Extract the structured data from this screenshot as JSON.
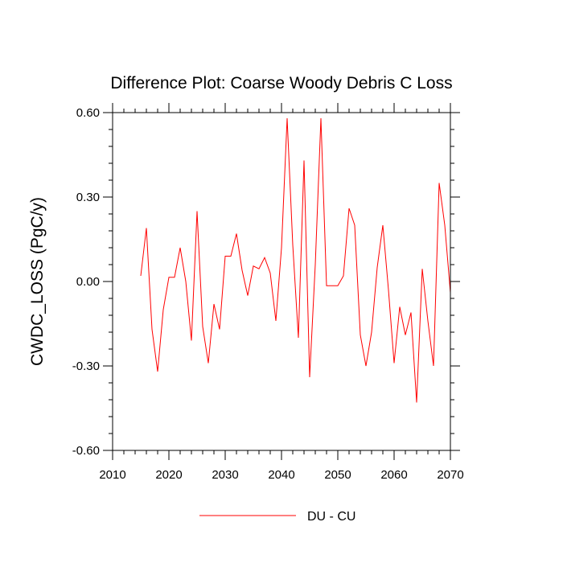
{
  "chart_data": {
    "type": "line",
    "title": "Difference Plot: Coarse Woody Debris C Loss",
    "xlabel": "",
    "ylabel": "CWDC_LOSS  (PgC/y)",
    "xlim": [
      2010,
      2070
    ],
    "ylim": [
      -0.6,
      0.6
    ],
    "xticks": [
      2010,
      2020,
      2030,
      2040,
      2050,
      2060,
      2070
    ],
    "xtick_labels": [
      "2010",
      "2020",
      "2030",
      "2040",
      "2050",
      "2060",
      "2070"
    ],
    "yticks": [
      -0.6,
      -0.3,
      0.0,
      0.3,
      0.6
    ],
    "ytick_labels": [
      "-0.60",
      "-0.30",
      "0.00",
      "0.30",
      "0.60"
    ],
    "grid": false,
    "legend": "bottom",
    "series": [
      {
        "name": "DU - CU",
        "color": "#ff0000",
        "x": [
          2015,
          2016,
          2017,
          2018,
          2019,
          2020,
          2021,
          2022,
          2023,
          2024,
          2025,
          2026,
          2027,
          2028,
          2029,
          2030,
          2031,
          2032,
          2033,
          2034,
          2035,
          2036,
          2037,
          2038,
          2039,
          2040,
          2041,
          2042,
          2043,
          2044,
          2045,
          2046,
          2047,
          2048,
          2049,
          2050,
          2051,
          2052,
          2053,
          2054,
          2055,
          2056,
          2057,
          2058,
          2059,
          2060,
          2061,
          2062,
          2063,
          2064,
          2065,
          2066,
          2067,
          2068,
          2069,
          2070
        ],
        "y": [
          0.02,
          0.19,
          -0.17,
          -0.32,
          -0.1,
          0.015,
          0.015,
          0.12,
          0.0,
          -0.21,
          0.25,
          -0.16,
          -0.29,
          -0.08,
          -0.17,
          0.09,
          0.09,
          0.17,
          0.04,
          -0.05,
          0.055,
          0.045,
          0.085,
          0.03,
          -0.14,
          0.12,
          0.58,
          0.13,
          -0.2,
          0.43,
          -0.34,
          0.06,
          0.58,
          -0.015,
          -0.015,
          -0.015,
          0.02,
          0.26,
          0.2,
          -0.19,
          -0.3,
          -0.18,
          0.05,
          0.2,
          -0.03,
          -0.29,
          -0.09,
          -0.19,
          -0.11,
          -0.43,
          0.045,
          -0.14,
          -0.3,
          0.35,
          0.2,
          -0.04
        ]
      }
    ]
  }
}
